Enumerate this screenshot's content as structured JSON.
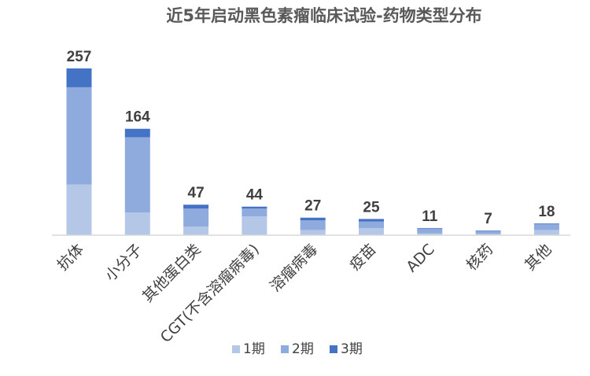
{
  "chart_data": {
    "type": "bar",
    "stacked": true,
    "title": "近5年启动黑色素瘤临床试验-药物类型分布",
    "categories": [
      "抗体",
      "小分子",
      "其他蛋白类",
      "CGT(不含溶瘤病毒)",
      "溶瘤病毒",
      "疫苗",
      "ADC",
      "核药",
      "其他"
    ],
    "totals": [
      257,
      164,
      47,
      44,
      27,
      25,
      11,
      7,
      18
    ],
    "series": [
      {
        "name": "1期",
        "color": "#b4c7e7",
        "values": [
          78,
          35,
          13,
          29,
          8,
          11,
          3,
          2,
          8
        ]
      },
      {
        "name": "2期",
        "color": "#8faadc",
        "values": [
          150,
          116,
          28,
          12,
          15,
          10,
          7,
          4,
          9
        ]
      },
      {
        "name": "3期",
        "color": "#4472c4",
        "values": [
          29,
          13,
          6,
          3,
          4,
          4,
          1,
          1,
          1
        ]
      }
    ],
    "ylim": [
      0,
      257
    ],
    "grid": false,
    "legend_position": "bottom"
  }
}
